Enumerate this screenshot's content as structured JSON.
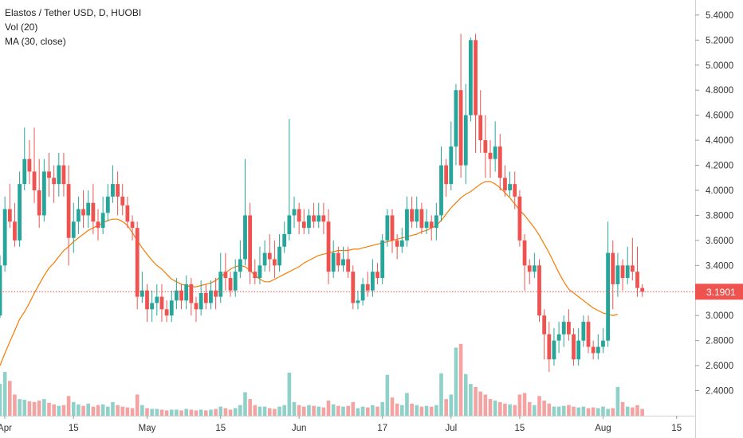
{
  "header": {
    "title": "Elastos / Tether USD, D, HUOBI",
    "indicator_volume": "Vol (20)",
    "indicator_ma": "MA (30, close)"
  },
  "price_label": "3.1901",
  "colors": {
    "up": "#26a69a",
    "down": "#ef5350",
    "volume_up": "#8fd1c8",
    "volume_down": "#f3a3a2",
    "ma": "#f57c00",
    "last_price": "#ef5350",
    "axis_text": "#333333"
  },
  "chart_data": {
    "type": "candlestick",
    "x_ticks": [
      "Apr",
      "15",
      "May",
      "15",
      "Jun",
      "17",
      "Jul",
      "15",
      "Aug",
      "15"
    ],
    "y_ticks": [
      "5.4000",
      "5.2000",
      "5.0000",
      "4.8000",
      "4.6000",
      "4.4000",
      "4.2000",
      "4.0000",
      "3.8000",
      "3.6000",
      "3.4000",
      "3.2000",
      "3.0000",
      "2.8000",
      "2.6000",
      "2.4000"
    ],
    "y_range": [
      2.2,
      5.52
    ],
    "last_price": 3.1901,
    "candles": [
      [
        3.0,
        3.4,
        3.48,
        2.98
      ],
      [
        3.4,
        3.85,
        3.95,
        3.35
      ],
      [
        3.85,
        3.75,
        4.05,
        3.7
      ],
      [
        3.75,
        3.6,
        3.9,
        3.55
      ],
      [
        3.6,
        4.05,
        4.15,
        3.55
      ],
      [
        4.05,
        4.25,
        4.5,
        4.0
      ],
      [
        4.25,
        4.15,
        4.4,
        4.05
      ],
      [
        4.15,
        4.0,
        4.5,
        3.9
      ],
      [
        4.0,
        3.8,
        4.25,
        3.7
      ],
      [
        3.8,
        4.15,
        4.25,
        3.75
      ],
      [
        4.15,
        4.1,
        4.3,
        3.95
      ],
      [
        4.1,
        4.05,
        4.2,
        3.9
      ],
      [
        4.05,
        4.2,
        4.3,
        3.95
      ],
      [
        4.2,
        4.05,
        4.3,
        3.95
      ],
      [
        4.05,
        3.62,
        4.2,
        3.4
      ],
      [
        3.62,
        3.75,
        3.9,
        3.5
      ],
      [
        3.75,
        3.85,
        3.95,
        3.65
      ],
      [
        3.85,
        3.8,
        4.0,
        3.7
      ],
      [
        3.8,
        3.9,
        4.0,
        3.7
      ],
      [
        3.9,
        3.75,
        4.05,
        3.65
      ],
      [
        3.75,
        3.7,
        3.85,
        3.6
      ],
      [
        3.7,
        3.82,
        3.95,
        3.65
      ],
      [
        3.82,
        3.95,
        4.05,
        3.75
      ],
      [
        3.95,
        4.05,
        4.2,
        3.9
      ],
      [
        4.05,
        3.95,
        4.15,
        3.8
      ],
      [
        3.95,
        3.88,
        4.05,
        3.8
      ],
      [
        3.88,
        3.75,
        3.95,
        3.7
      ],
      [
        3.75,
        3.7,
        3.8,
        3.6
      ],
      [
        3.7,
        3.15,
        3.75,
        3.05
      ],
      [
        3.15,
        3.2,
        3.35,
        3.1
      ],
      [
        3.2,
        3.05,
        3.25,
        2.95
      ],
      [
        3.05,
        3.1,
        3.2,
        2.95
      ],
      [
        3.1,
        3.15,
        3.25,
        3.0
      ],
      [
        3.15,
        3.05,
        3.25,
        2.95
      ],
      [
        3.05,
        3.0,
        3.12,
        2.95
      ],
      [
        3.0,
        3.12,
        3.2,
        2.95
      ],
      [
        3.12,
        3.2,
        3.3,
        3.05
      ],
      [
        3.2,
        3.12,
        3.25,
        3.05
      ],
      [
        3.12,
        3.25,
        3.32,
        3.05
      ],
      [
        3.25,
        3.1,
        3.3,
        3.0
      ],
      [
        3.1,
        3.05,
        3.15,
        2.95
      ],
      [
        3.05,
        3.18,
        3.28,
        3.0
      ],
      [
        3.18,
        3.1,
        3.25,
        3.05
      ],
      [
        3.1,
        3.2,
        3.28,
        3.05
      ],
      [
        3.2,
        3.15,
        3.3,
        3.05
      ],
      [
        3.15,
        3.35,
        3.5,
        3.1
      ],
      [
        3.35,
        3.3,
        3.5,
        3.2
      ],
      [
        3.3,
        3.2,
        3.35,
        3.15
      ],
      [
        3.2,
        3.35,
        3.45,
        3.15
      ],
      [
        3.35,
        3.45,
        3.6,
        3.3
      ],
      [
        3.45,
        3.8,
        4.25,
        3.4
      ],
      [
        3.8,
        3.35,
        3.9,
        3.25
      ],
      [
        3.35,
        3.3,
        3.45,
        3.25
      ],
      [
        3.3,
        3.4,
        3.55,
        3.25
      ],
      [
        3.4,
        3.5,
        3.6,
        3.35
      ],
      [
        3.5,
        3.45,
        3.65,
        3.35
      ],
      [
        3.45,
        3.4,
        3.6,
        3.3
      ],
      [
        3.4,
        3.55,
        3.65,
        3.35
      ],
      [
        3.55,
        3.65,
        3.75,
        3.5
      ],
      [
        3.65,
        3.8,
        4.57,
        3.6
      ],
      [
        3.8,
        3.85,
        3.95,
        3.7
      ],
      [
        3.85,
        3.75,
        3.9,
        3.65
      ],
      [
        3.75,
        3.7,
        3.85,
        3.65
      ],
      [
        3.7,
        3.8,
        3.85,
        3.65
      ],
      [
        3.8,
        3.75,
        3.9,
        3.7
      ],
      [
        3.75,
        3.8,
        3.9,
        3.7
      ],
      [
        3.8,
        3.75,
        3.9,
        3.65
      ],
      [
        3.75,
        3.35,
        3.85,
        3.25
      ],
      [
        3.35,
        3.5,
        3.6,
        3.3
      ],
      [
        3.5,
        3.4,
        3.55,
        3.35
      ],
      [
        3.4,
        3.45,
        3.55,
        3.35
      ],
      [
        3.45,
        3.35,
        3.55,
        3.3
      ],
      [
        3.35,
        3.1,
        3.4,
        3.05
      ],
      [
        3.1,
        3.12,
        3.2,
        3.05
      ],
      [
        3.12,
        3.25,
        3.3,
        3.08
      ],
      [
        3.25,
        3.2,
        3.35,
        3.15
      ],
      [
        3.2,
        3.35,
        3.45,
        3.15
      ],
      [
        3.35,
        3.3,
        3.42,
        3.25
      ],
      [
        3.3,
        3.6,
        3.65,
        3.25
      ],
      [
        3.6,
        3.8,
        3.85,
        3.55
      ],
      [
        3.8,
        3.6,
        3.85,
        3.5
      ],
      [
        3.6,
        3.55,
        3.65,
        3.45
      ],
      [
        3.55,
        3.6,
        3.7,
        3.5
      ],
      [
        3.6,
        3.85,
        3.95,
        3.55
      ],
      [
        3.85,
        3.75,
        3.95,
        3.7
      ],
      [
        3.75,
        3.85,
        3.95,
        3.7
      ],
      [
        3.85,
        3.7,
        3.9,
        3.65
      ],
      [
        3.7,
        3.75,
        3.85,
        3.65
      ],
      [
        3.75,
        3.7,
        3.8,
        3.6
      ],
      [
        3.7,
        3.8,
        3.9,
        3.6
      ],
      [
        3.8,
        4.2,
        4.35,
        3.75
      ],
      [
        4.2,
        4.05,
        4.25,
        3.95
      ],
      [
        4.05,
        4.35,
        4.55,
        4.0
      ],
      [
        4.35,
        4.8,
        4.85,
        4.2
      ],
      [
        4.8,
        4.2,
        5.25,
        4.1
      ],
      [
        4.2,
        4.6,
        4.85,
        4.05
      ],
      [
        4.6,
        5.2,
        5.22,
        4.55
      ],
      [
        5.2,
        4.6,
        5.25,
        4.3
      ],
      [
        4.6,
        4.4,
        4.8,
        4.3
      ],
      [
        4.4,
        4.3,
        4.6,
        4.1
      ],
      [
        4.3,
        4.25,
        4.4,
        4.1
      ],
      [
        4.25,
        4.35,
        4.55,
        4.15
      ],
      [
        4.35,
        4.1,
        4.45,
        4.0
      ],
      [
        4.1,
        4.0,
        4.2,
        3.95
      ],
      [
        4.0,
        4.05,
        4.15,
        3.95
      ],
      [
        4.05,
        3.95,
        4.15,
        3.85
      ],
      [
        3.95,
        3.6,
        4.0,
        3.55
      ],
      [
        3.6,
        3.4,
        3.65,
        3.2
      ],
      [
        3.4,
        3.35,
        3.45,
        3.25
      ],
      [
        3.35,
        3.4,
        3.5,
        3.3
      ],
      [
        3.4,
        3.0,
        3.45,
        2.95
      ],
      [
        3.0,
        2.85,
        3.05,
        2.65
      ],
      [
        2.85,
        2.65,
        2.95,
        2.55
      ],
      [
        2.65,
        2.8,
        2.9,
        2.6
      ],
      [
        2.8,
        2.85,
        2.95,
        2.7
      ],
      [
        2.85,
        2.95,
        3.0,
        2.75
      ],
      [
        2.95,
        2.85,
        3.05,
        2.8
      ],
      [
        2.85,
        2.65,
        2.9,
        2.6
      ],
      [
        2.65,
        2.8,
        2.9,
        2.6
      ],
      [
        2.8,
        2.95,
        3.0,
        2.75
      ],
      [
        2.95,
        2.75,
        3.0,
        2.7
      ],
      [
        2.75,
        2.7,
        2.8,
        2.65
      ],
      [
        2.7,
        2.75,
        2.85,
        2.65
      ],
      [
        2.75,
        2.8,
        2.9,
        2.7
      ],
      [
        2.8,
        3.5,
        3.75,
        2.75
      ],
      [
        3.5,
        3.25,
        3.6,
        3.05
      ],
      [
        3.25,
        3.4,
        3.5,
        3.15
      ],
      [
        3.4,
        3.3,
        3.45,
        3.2
      ],
      [
        3.3,
        3.4,
        3.55,
        3.25
      ],
      [
        3.4,
        3.35,
        3.62,
        3.28
      ],
      [
        3.35,
        3.22,
        3.55,
        3.15
      ],
      [
        3.22,
        3.19,
        3.25,
        3.15
      ]
    ],
    "ma": [
      2.6,
      2.7,
      2.79,
      2.88,
      2.97,
      3.03,
      3.1,
      3.18,
      3.25,
      3.32,
      3.38,
      3.42,
      3.47,
      3.52,
      3.55,
      3.59,
      3.62,
      3.65,
      3.68,
      3.7,
      3.72,
      3.74,
      3.76,
      3.77,
      3.77,
      3.75,
      3.72,
      3.66,
      3.6,
      3.54,
      3.49,
      3.44,
      3.4,
      3.37,
      3.33,
      3.29,
      3.27,
      3.25,
      3.24,
      3.23,
      3.23,
      3.24,
      3.25,
      3.26,
      3.28,
      3.31,
      3.34,
      3.37,
      3.39,
      3.4,
      3.39,
      3.36,
      3.32,
      3.29,
      3.27,
      3.27,
      3.29,
      3.31,
      3.33,
      3.35,
      3.37,
      3.39,
      3.42,
      3.44,
      3.46,
      3.48,
      3.49,
      3.5,
      3.51,
      3.52,
      3.52,
      3.52,
      3.53,
      3.53,
      3.54,
      3.55,
      3.56,
      3.57,
      3.58,
      3.59,
      3.6,
      3.61,
      3.62,
      3.63,
      3.64,
      3.65,
      3.67,
      3.68,
      3.7,
      3.72,
      3.76,
      3.81,
      3.86,
      3.9,
      3.94,
      3.97,
      3.99,
      4.02,
      4.05,
      4.07,
      4.07,
      4.05,
      4.02,
      3.98,
      3.94,
      3.89,
      3.84,
      3.8,
      3.75,
      3.7,
      3.64,
      3.57,
      3.5,
      3.42,
      3.34,
      3.27,
      3.21,
      3.18,
      3.15,
      3.12,
      3.09,
      3.06,
      3.04,
      3.02,
      3.01,
      3.0,
      3.01
    ],
    "volume": [
      0.42,
      0.58,
      0.46,
      0.28,
      0.22,
      0.21,
      0.19,
      0.18,
      0.2,
      0.22,
      0.17,
      0.15,
      0.13,
      0.14,
      0.26,
      0.18,
      0.15,
      0.13,
      0.16,
      0.12,
      0.14,
      0.15,
      0.12,
      0.18,
      0.14,
      0.12,
      0.11,
      0.1,
      0.28,
      0.14,
      0.1,
      0.09,
      0.09,
      0.08,
      0.07,
      0.08,
      0.08,
      0.07,
      0.09,
      0.08,
      0.07,
      0.08,
      0.07,
      0.08,
      0.09,
      0.12,
      0.1,
      0.08,
      0.1,
      0.14,
      0.31,
      0.22,
      0.14,
      0.12,
      0.12,
      0.1,
      0.09,
      0.12,
      0.14,
      0.57,
      0.18,
      0.14,
      0.12,
      0.14,
      0.13,
      0.12,
      0.11,
      0.2,
      0.15,
      0.13,
      0.12,
      0.13,
      0.18,
      0.1,
      0.12,
      0.11,
      0.14,
      0.12,
      0.18,
      0.54,
      0.24,
      0.16,
      0.14,
      0.3,
      0.16,
      0.14,
      0.12,
      0.13,
      0.12,
      0.14,
      0.56,
      0.22,
      0.28,
      0.9,
      0.95,
      0.55,
      0.42,
      0.38,
      0.32,
      0.28,
      0.22,
      0.2,
      0.18,
      0.16,
      0.15,
      0.14,
      0.28,
      0.3,
      0.18,
      0.14,
      0.26,
      0.2,
      0.16,
      0.12,
      0.12,
      0.13,
      0.14,
      0.12,
      0.11,
      0.12,
      0.1,
      0.11,
      0.1,
      0.12,
      0.09,
      0.1,
      0.38,
      0.18,
      0.12,
      0.11,
      0.14,
      0.09,
      0.1,
      0.08
    ]
  }
}
